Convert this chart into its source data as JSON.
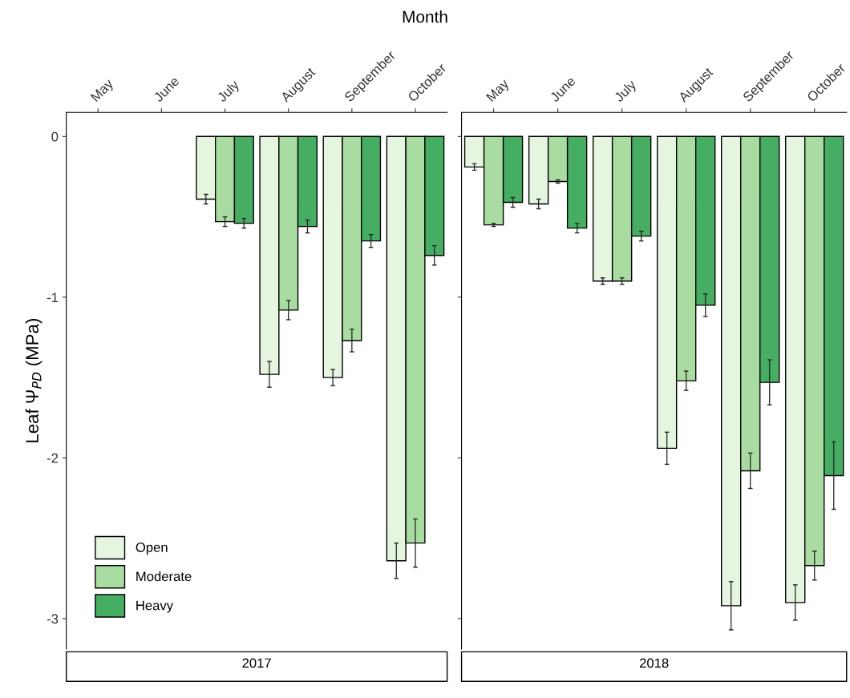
{
  "chart_data": [
    {
      "type": "bar",
      "title": "2017",
      "xlabel": "Month",
      "ylabel": "Leaf Ψ$_{PD}$ (MPa)",
      "categories": [
        "May",
        "June",
        "July",
        "August",
        "September",
        "October"
      ],
      "series": [
        {
          "name": "Open",
          "color": "#e5f5e0",
          "values": [
            null,
            null,
            -0.39,
            -1.48,
            -1.5,
            -2.64
          ],
          "errors": [
            null,
            null,
            0.03,
            0.08,
            0.05,
            0.11
          ]
        },
        {
          "name": "Moderate",
          "color": "#a8dca0",
          "values": [
            null,
            null,
            -0.53,
            -1.08,
            -1.27,
            -2.53
          ],
          "errors": [
            null,
            null,
            0.03,
            0.06,
            0.07,
            0.15
          ]
        },
        {
          "name": "Heavy",
          "color": "#45ae62",
          "values": [
            null,
            null,
            -0.54,
            -0.56,
            -0.65,
            -0.74
          ],
          "errors": [
            null,
            null,
            0.03,
            0.04,
            0.04,
            0.06
          ]
        }
      ],
      "ylim": [
        -3.19,
        0.15
      ],
      "yticks": [
        0,
        {
          "value": -1,
          "label": "-1"
        },
        {
          "value": -2,
          "label": "-2"
        },
        {
          "value": -3,
          "label": "-3"
        }
      ],
      "legend": "bottom left",
      "grid": false
    },
    {
      "type": "bar",
      "title": "2018",
      "categories": [
        "May",
        "June",
        "July",
        "August",
        "September",
        "October"
      ],
      "series": [
        {
          "color": "#e5f5e0",
          "values": [
            -0.19,
            -0.42,
            -0.9,
            -1.94,
            -2.92,
            -2.9
          ],
          "errors": [
            0.02,
            0.03,
            0.02,
            0.1,
            0.15,
            0.11
          ]
        },
        {
          "color": "#a8dca0",
          "values": [
            -0.55,
            -0.28,
            -0.9,
            -1.52,
            -2.08,
            -2.67
          ],
          "errors": [
            0.01,
            0.01,
            0.02,
            0.06,
            0.11,
            0.09
          ]
        },
        {
          "color": "#45ae62",
          "values": [
            -0.41,
            -0.57,
            -0.62,
            -1.05,
            -1.53,
            -2.11
          ],
          "errors": [
            0.03,
            0.03,
            0.03,
            0.07,
            0.14,
            0.21
          ]
        }
      ],
      "ylim": [
        -3.19,
        0.15
      ],
      "yticks": [
        {
          "value": 0,
          "label": null
        },
        {
          "value": -1,
          "label": null
        },
        {
          "value": -2,
          "label": null
        },
        {
          "value": -3,
          "label": null
        }
      ],
      "tick_labels": "x",
      "grid": false
    }
  ]
}
